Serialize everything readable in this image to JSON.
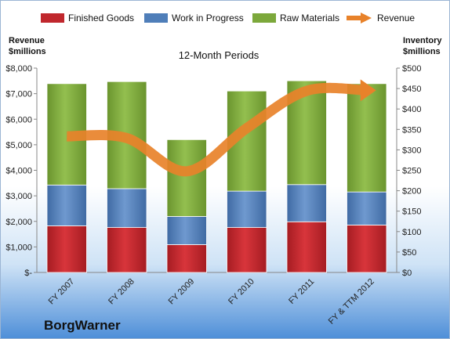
{
  "brand": "BorgWarner",
  "legend": [
    {
      "key": "finished",
      "label": "Finished Goods",
      "color": "#c0272d"
    },
    {
      "key": "wip",
      "label": "Work in Progress",
      "color": "#4f7eb9"
    },
    {
      "key": "raw",
      "label": "Raw Materials",
      "color": "#7ca83b"
    },
    {
      "key": "revenue",
      "label": "Revenue",
      "color": "#e8822a"
    }
  ],
  "chart_data": {
    "type": "bar",
    "stacked": true,
    "title": "12-Month Periods",
    "left_axis_title": [
      "Revenue",
      "$millions"
    ],
    "right_axis_title": [
      "Inventory",
      "$millions"
    ],
    "categories": [
      "FY 2007",
      "FY 2008",
      "FY 2009",
      "FY 2010",
      "FY 2011",
      "FY & TTM 2012"
    ],
    "left_ticks": [
      "$-",
      "$1,000",
      "$2,000",
      "$3,000",
      "$4,000",
      "$5,000",
      "$6,000",
      "$7,000",
      "$8,000"
    ],
    "right_ticks": [
      "$0",
      "$50",
      "$100",
      "$150",
      "$200",
      "$250",
      "$300",
      "$350",
      "$400",
      "$450",
      "$500"
    ],
    "left_range": [
      0,
      8000
    ],
    "right_range": [
      0,
      500
    ],
    "series": [
      {
        "name": "Finished Goods",
        "axis": "right",
        "color": "#c0272d",
        "values": [
          114,
          110,
          68,
          110,
          124,
          116
        ]
      },
      {
        "name": "Work in Progress",
        "axis": "right",
        "color": "#4f7eb9",
        "values": [
          100,
          95,
          69,
          89,
          91,
          81
        ]
      },
      {
        "name": "Raw Materials",
        "axis": "right",
        "color": "#7ca83b",
        "values": [
          248,
          262,
          188,
          245,
          254,
          265
        ]
      },
      {
        "name": "Revenue",
        "axis": "left",
        "type": "line",
        "color": "#e8822a",
        "values": [
          5330,
          5260,
          3960,
          5650,
          7110,
          7130
        ]
      }
    ]
  }
}
